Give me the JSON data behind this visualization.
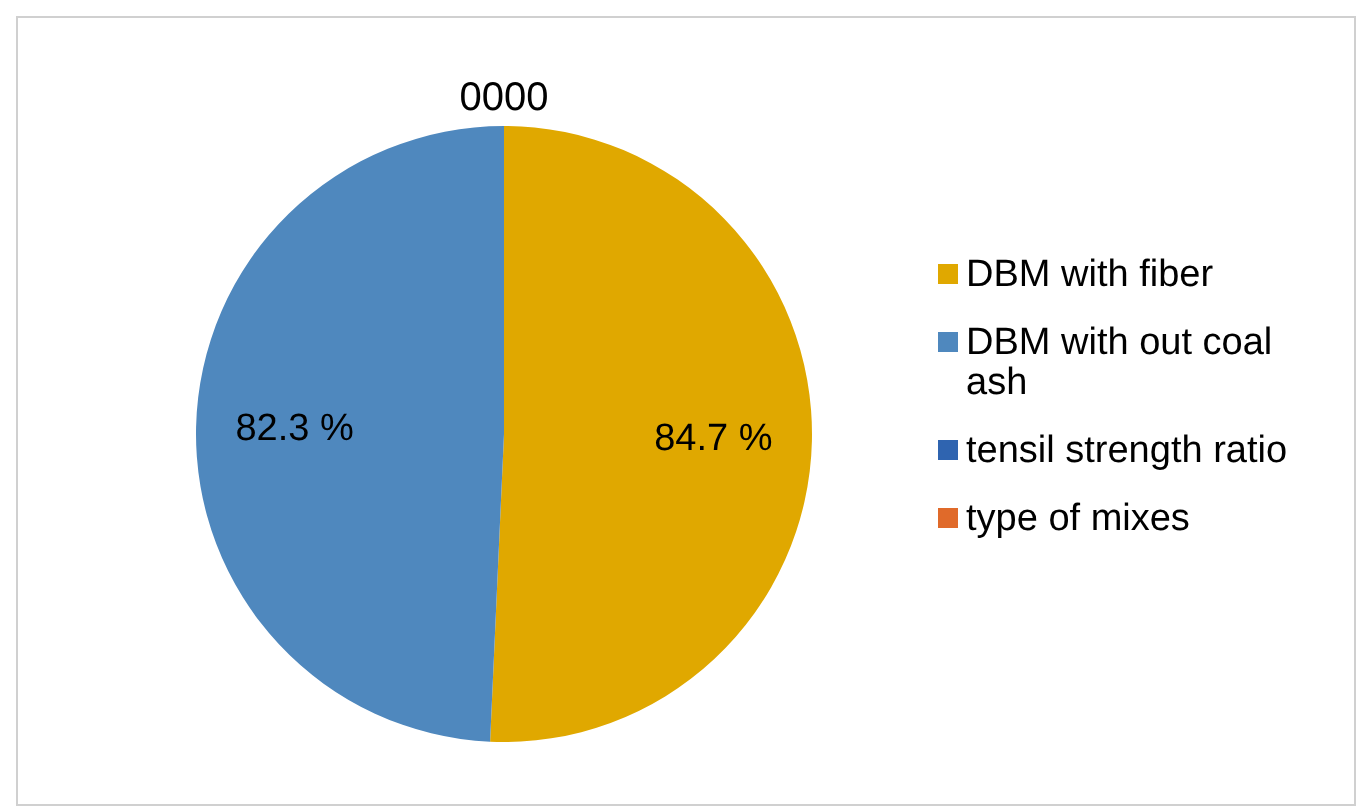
{
  "chart_data": {
    "type": "pie",
    "categories": [
      "tensil strength ratio",
      "type of mixes",
      "DBM with fiber",
      "DBM with out coal ash"
    ],
    "values": [
      0,
      0,
      84.7,
      82.3
    ],
    "colors": [
      "#2f64b0",
      "#e06a2a",
      "#e0a800",
      "#4f88be"
    ],
    "value_labels": [
      "00",
      "00",
      "84.7 %",
      "82.3 %"
    ],
    "legend": "right"
  }
}
